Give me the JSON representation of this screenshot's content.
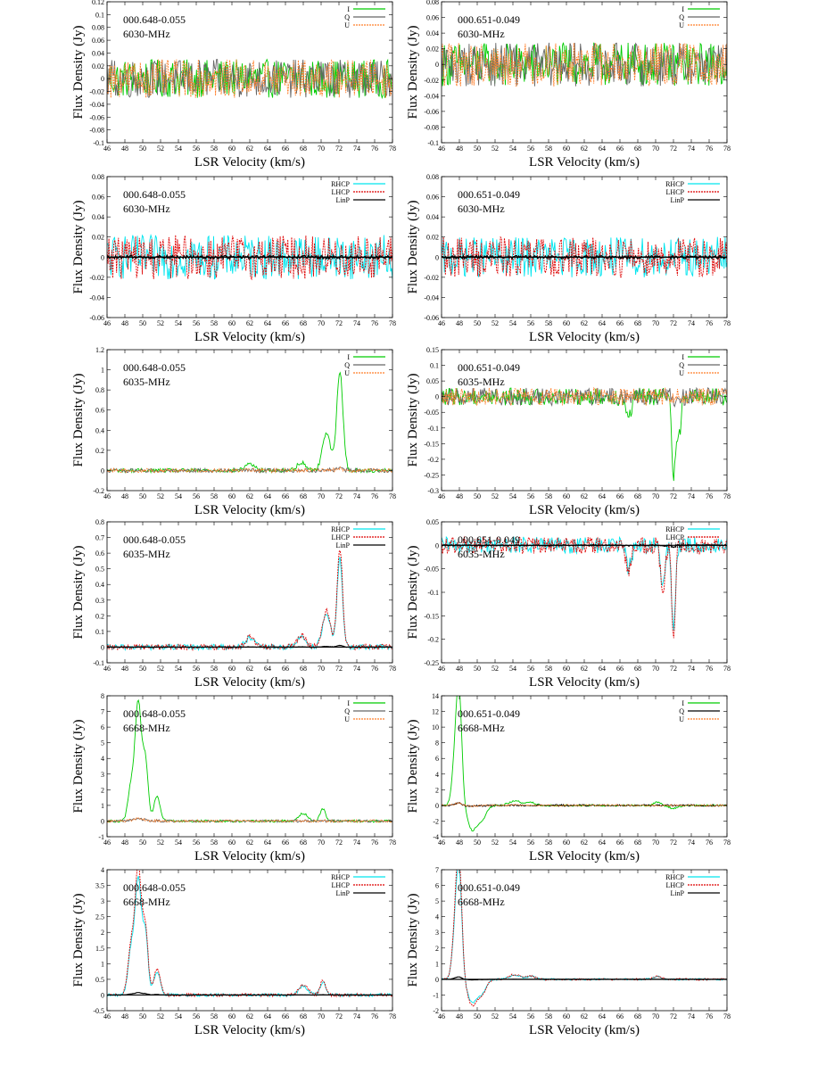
{
  "figure": {
    "xlabel": "LSR Velocity (km/s)",
    "ylabel": "Flux Density (Jy)",
    "xlim": [
      46,
      78
    ],
    "xticks": [
      46,
      48,
      50,
      52,
      54,
      56,
      58,
      60,
      62,
      64,
      66,
      68,
      70,
      72,
      74,
      76,
      78
    ]
  },
  "chart_data": [
    {
      "type": "line",
      "source": "000.648-0.055",
      "freq": "6030-MHz",
      "legend": "IQU",
      "ylim": [
        -0.1,
        0.12
      ],
      "yticks": [
        -0.1,
        -0.08,
        -0.06,
        -0.04,
        -0.02,
        0,
        0.02,
        0.04,
        0.06,
        0.08,
        0.1,
        0.12
      ],
      "noise": 0.03,
      "peaks": [],
      "series": [
        {
          "name": "I",
          "color": "#00cc00"
        },
        {
          "name": "Q",
          "color": "#666666"
        },
        {
          "name": "U",
          "color": "#ff7f2a"
        }
      ]
    },
    {
      "type": "line",
      "source": "000.651-0.049",
      "freq": "6030-MHz",
      "legend": "IQU",
      "ylim": [
        -0.1,
        0.08
      ],
      "yticks": [
        -0.1,
        -0.08,
        -0.06,
        -0.04,
        -0.02,
        0,
        0.02,
        0.04,
        0.06,
        0.08
      ],
      "noise": 0.028,
      "peaks": [],
      "series": [
        {
          "name": "I",
          "color": "#00cc00"
        },
        {
          "name": "Q",
          "color": "#666666"
        },
        {
          "name": "U",
          "color": "#ff7f2a"
        }
      ]
    },
    {
      "type": "line",
      "source": "000.648-0.055",
      "freq": "6030-MHz",
      "legend": "CP",
      "ylim": [
        -0.06,
        0.08
      ],
      "yticks": [
        -0.06,
        -0.04,
        -0.02,
        0,
        0.02,
        0.04,
        0.06,
        0.08
      ],
      "noise": 0.022,
      "peaks": [],
      "series": [
        {
          "name": "RHCP",
          "color": "#00e5ee"
        },
        {
          "name": "LHCP",
          "color": "#dd0000"
        },
        {
          "name": "LinP",
          "color": "#000000"
        }
      ]
    },
    {
      "type": "line",
      "source": "000.651-0.049",
      "freq": "6030-MHz",
      "legend": "CP",
      "ylim": [
        -0.06,
        0.08
      ],
      "yticks": [
        -0.06,
        -0.04,
        -0.02,
        0,
        0.02,
        0.04,
        0.06,
        0.08
      ],
      "noise": 0.02,
      "peaks": [],
      "series": [
        {
          "name": "RHCP",
          "color": "#00e5ee"
        },
        {
          "name": "LHCP",
          "color": "#dd0000"
        },
        {
          "name": "LinP",
          "color": "#000000"
        }
      ]
    },
    {
      "type": "line",
      "source": "000.648-0.055",
      "freq": "6035-MHz",
      "legend": "IQU",
      "ylim": [
        -0.2,
        1.2
      ],
      "yticks": [
        -0.2,
        0,
        0.2,
        0.4,
        0.6,
        0.8,
        1,
        1.2
      ],
      "noise": 0.02,
      "peaks": [
        [
          62.0,
          0.07,
          0.5
        ],
        [
          67.8,
          0.08,
          0.5
        ],
        [
          70.6,
          0.38,
          0.45
        ],
        [
          72.1,
          0.98,
          0.35
        ]
      ],
      "series": [
        {
          "name": "I",
          "color": "#00cc00"
        },
        {
          "name": "Q",
          "color": "#666666"
        },
        {
          "name": "U",
          "color": "#ff7f2a"
        }
      ]
    },
    {
      "type": "line",
      "source": "000.651-0.049",
      "freq": "6035-MHz",
      "legend": "IQU",
      "ylim": [
        -0.3,
        0.15
      ],
      "yticks": [
        -0.3,
        -0.25,
        -0.2,
        -0.15,
        -0.1,
        -0.05,
        0,
        0.05,
        0.1,
        0.15
      ],
      "noise": 0.028,
      "peaks": [
        [
          67.0,
          -0.06,
          0.3
        ],
        [
          72.0,
          -0.24,
          0.2
        ],
        [
          72.6,
          -0.12,
          0.25
        ]
      ],
      "series": [
        {
          "name": "I",
          "color": "#00cc00"
        },
        {
          "name": "Q",
          "color": "#666666"
        },
        {
          "name": "U",
          "color": "#ff7f2a"
        }
      ]
    },
    {
      "type": "line",
      "source": "000.648-0.055",
      "freq": "6035-MHz",
      "legend": "CP",
      "ylim": [
        -0.1,
        0.8
      ],
      "yticks": [
        -0.1,
        0,
        0.1,
        0.2,
        0.3,
        0.4,
        0.5,
        0.6,
        0.7,
        0.8
      ],
      "noise": 0.018,
      "peaks": [
        [
          62.0,
          0.06,
          0.5
        ],
        [
          67.8,
          0.07,
          0.5
        ],
        [
          70.6,
          0.22,
          0.45
        ],
        [
          72.1,
          0.6,
          0.3
        ]
      ],
      "series": [
        {
          "name": "RHCP",
          "color": "#00e5ee"
        },
        {
          "name": "LHCP",
          "color": "#dd0000"
        },
        {
          "name": "LinP",
          "color": "#000000"
        }
      ]
    },
    {
      "type": "line",
      "source": "000.651-0.049",
      "freq": "6035-MHz",
      "legend": "CP",
      "ylim": [
        -0.25,
        0.05
      ],
      "yticks": [
        -0.25,
        -0.2,
        -0.15,
        -0.1,
        -0.05,
        0,
        0.05
      ],
      "noise": 0.018,
      "peaks": [
        [
          67.0,
          -0.05,
          0.3
        ],
        [
          70.8,
          -0.09,
          0.25
        ],
        [
          72.0,
          -0.2,
          0.2
        ]
      ],
      "series": [
        {
          "name": "RHCP",
          "color": "#00e5ee"
        },
        {
          "name": "LHCP",
          "color": "#dd0000"
        },
        {
          "name": "LinP",
          "color": "#000000"
        }
      ]
    },
    {
      "type": "line",
      "source": "000.648-0.055",
      "freq": "6668-MHz",
      "legend": "IQU",
      "ylim": [
        -1,
        8
      ],
      "yticks": [
        -1,
        0,
        1,
        2,
        3,
        4,
        5,
        6,
        7,
        8
      ],
      "noise": 0.08,
      "peaks": [
        [
          48.7,
          2.2,
          0.35
        ],
        [
          49.5,
          7.5,
          0.35
        ],
        [
          50.3,
          3.8,
          0.3
        ],
        [
          51.6,
          1.6,
          0.35
        ],
        [
          68.0,
          0.5,
          0.5
        ],
        [
          70.2,
          0.8,
          0.3
        ]
      ],
      "series": [
        {
          "name": "I",
          "color": "#00cc00"
        },
        {
          "name": "Q",
          "color": "#666666"
        },
        {
          "name": "U",
          "color": "#ff7f2a"
        }
      ]
    },
    {
      "type": "line",
      "source": "000.651-0.049",
      "freq": "6668-MHz",
      "legend": "IQU",
      "ylim": [
        -4,
        14
      ],
      "yticks": [
        -4,
        -2,
        0,
        2,
        4,
        6,
        8,
        10,
        12,
        14
      ],
      "noise": 0.12,
      "peaks": [
        [
          47.6,
          7.0,
          0.35
        ],
        [
          48.0,
          11.5,
          0.3
        ],
        [
          49.4,
          -3.0,
          0.5
        ],
        [
          50.5,
          -1.8,
          0.5
        ],
        [
          54.2,
          0.6,
          0.6
        ],
        [
          56.0,
          0.4,
          0.5
        ],
        [
          70.2,
          0.4,
          0.4
        ],
        [
          72.0,
          -0.4,
          0.5
        ]
      ],
      "series": [
        {
          "name": "I",
          "color": "#00cc00"
        },
        {
          "name": "Q",
          "color": "#000000"
        },
        {
          "name": "U",
          "color": "#ff7f2a"
        }
      ]
    },
    {
      "type": "line",
      "source": "000.648-0.055",
      "freq": "6668-MHz",
      "legend": "CP",
      "ylim": [
        -0.5,
        4
      ],
      "yticks": [
        -0.5,
        0,
        0.5,
        1,
        1.5,
        2,
        2.5,
        3,
        3.5,
        4
      ],
      "noise": 0.05,
      "peaks": [
        [
          48.7,
          1.5,
          0.35
        ],
        [
          49.5,
          3.8,
          0.35
        ],
        [
          50.3,
          2.0,
          0.3
        ],
        [
          51.6,
          0.8,
          0.35
        ],
        [
          68.0,
          0.3,
          0.5
        ],
        [
          70.2,
          0.45,
          0.3
        ]
      ],
      "series": [
        {
          "name": "RHCP",
          "color": "#00e5ee"
        },
        {
          "name": "LHCP",
          "color": "#dd0000"
        },
        {
          "name": "LinP",
          "color": "#000000"
        }
      ]
    },
    {
      "type": "line",
      "source": "000.651-0.049",
      "freq": "6668-MHz",
      "legend": "CP",
      "ylim": [
        -2,
        7
      ],
      "yticks": [
        -2,
        -1,
        0,
        1,
        2,
        3,
        4,
        5,
        6,
        7
      ],
      "noise": 0.06,
      "peaks": [
        [
          47.6,
          3.5,
          0.35
        ],
        [
          48.0,
          5.8,
          0.3
        ],
        [
          49.4,
          -1.5,
          0.5
        ],
        [
          50.5,
          -0.9,
          0.5
        ],
        [
          54.2,
          0.3,
          0.6
        ],
        [
          56.0,
          0.2,
          0.5
        ],
        [
          70.2,
          0.2,
          0.4
        ]
      ],
      "series": [
        {
          "name": "RHCP",
          "color": "#00e5ee"
        },
        {
          "name": "LHCP",
          "color": "#dd0000"
        },
        {
          "name": "LinP",
          "color": "#000000"
        }
      ]
    }
  ]
}
